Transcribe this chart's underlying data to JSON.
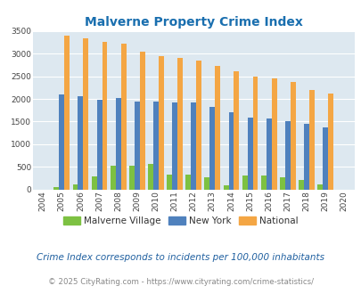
{
  "title": "Malverne Property Crime Index",
  "years": [
    2004,
    2005,
    2006,
    2007,
    2008,
    2009,
    2010,
    2011,
    2012,
    2013,
    2014,
    2015,
    2016,
    2017,
    2018,
    2019,
    2020
  ],
  "malverne": [
    0,
    50,
    120,
    300,
    530,
    530,
    560,
    340,
    340,
    270,
    90,
    310,
    320,
    270,
    210,
    120,
    0
  ],
  "new_york": [
    0,
    2090,
    2050,
    1990,
    2020,
    1950,
    1940,
    1920,
    1920,
    1820,
    1710,
    1590,
    1560,
    1510,
    1450,
    1370,
    0
  ],
  "national": [
    0,
    3400,
    3330,
    3260,
    3210,
    3040,
    2950,
    2900,
    2850,
    2720,
    2600,
    2490,
    2460,
    2380,
    2200,
    2120,
    0
  ],
  "malverne_color": "#7dc142",
  "newyork_color": "#4f81bd",
  "national_color": "#f4a644",
  "bg_color": "#dde8f0",
  "ylim": [
    0,
    3500
  ],
  "yticks": [
    0,
    500,
    1000,
    1500,
    2000,
    2500,
    3000,
    3500
  ],
  "legend_labels": [
    "Malverne Village",
    "New York",
    "National"
  ],
  "footnote1": "Crime Index corresponds to incidents per 100,000 inhabitants",
  "footnote2": "© 2025 CityRating.com - https://www.cityrating.com/crime-statistics/",
  "title_color": "#1a6faf",
  "footnote1_color": "#2060a0",
  "footnote2_color": "#888888"
}
